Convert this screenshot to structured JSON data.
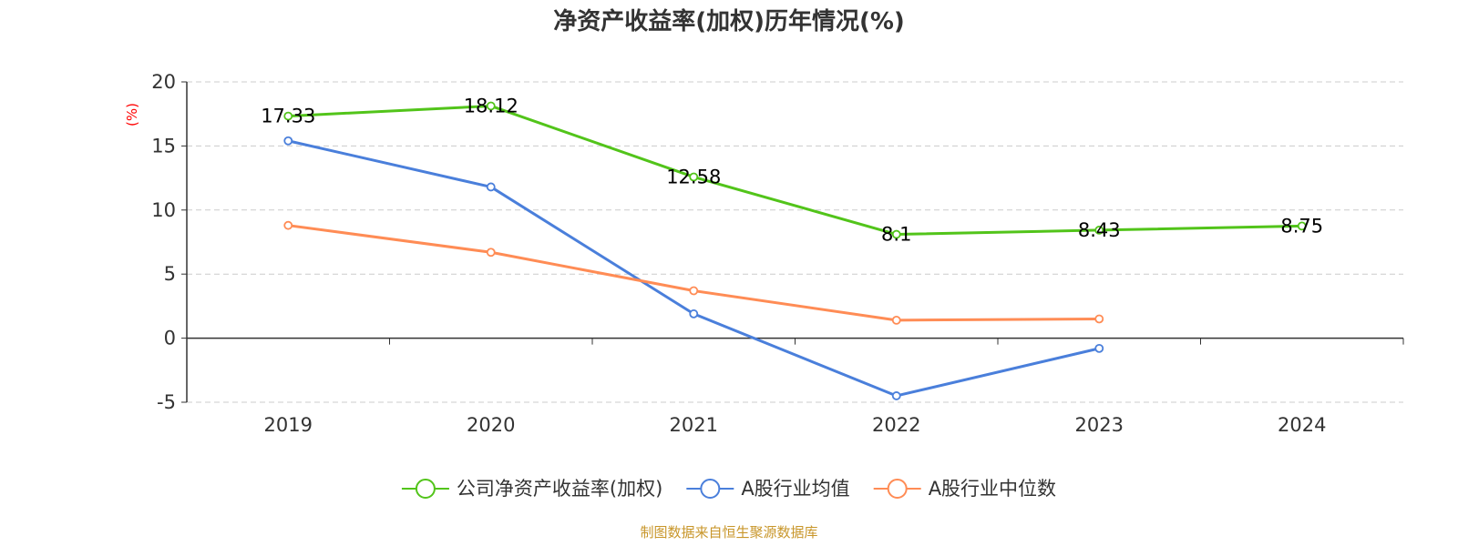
{
  "chart_data": {
    "type": "line",
    "title": "净资产收益率(加权)历年情况(%)",
    "ylabel": "(%)",
    "categories": [
      "2019",
      "2020",
      "2021",
      "2022",
      "2023",
      "2024"
    ],
    "ylim": [
      -5,
      20
    ],
    "yticks": [
      "-5",
      "0",
      "5",
      "10",
      "15",
      "20"
    ],
    "grid": true,
    "legend_position": "bottom",
    "series": [
      {
        "name": "公司净资产收益率(加权)",
        "color": "#52c41a",
        "values": [
          17.33,
          18.12,
          12.58,
          8.1,
          8.43,
          8.75
        ],
        "labels": [
          "17.33",
          "18.12",
          "12.58",
          "8.1",
          "8.43",
          "8.75"
        ]
      },
      {
        "name": "A股行业均值",
        "color": "#4a7fdb",
        "values": [
          15.4,
          11.8,
          1.9,
          -4.5,
          -0.8,
          null
        ]
      },
      {
        "name": "A股行业中位数",
        "color": "#ff8c55",
        "values": [
          8.8,
          6.7,
          3.7,
          1.4,
          1.5,
          null
        ]
      }
    ]
  },
  "source_note": "制图数据来自恒生聚源数据库"
}
